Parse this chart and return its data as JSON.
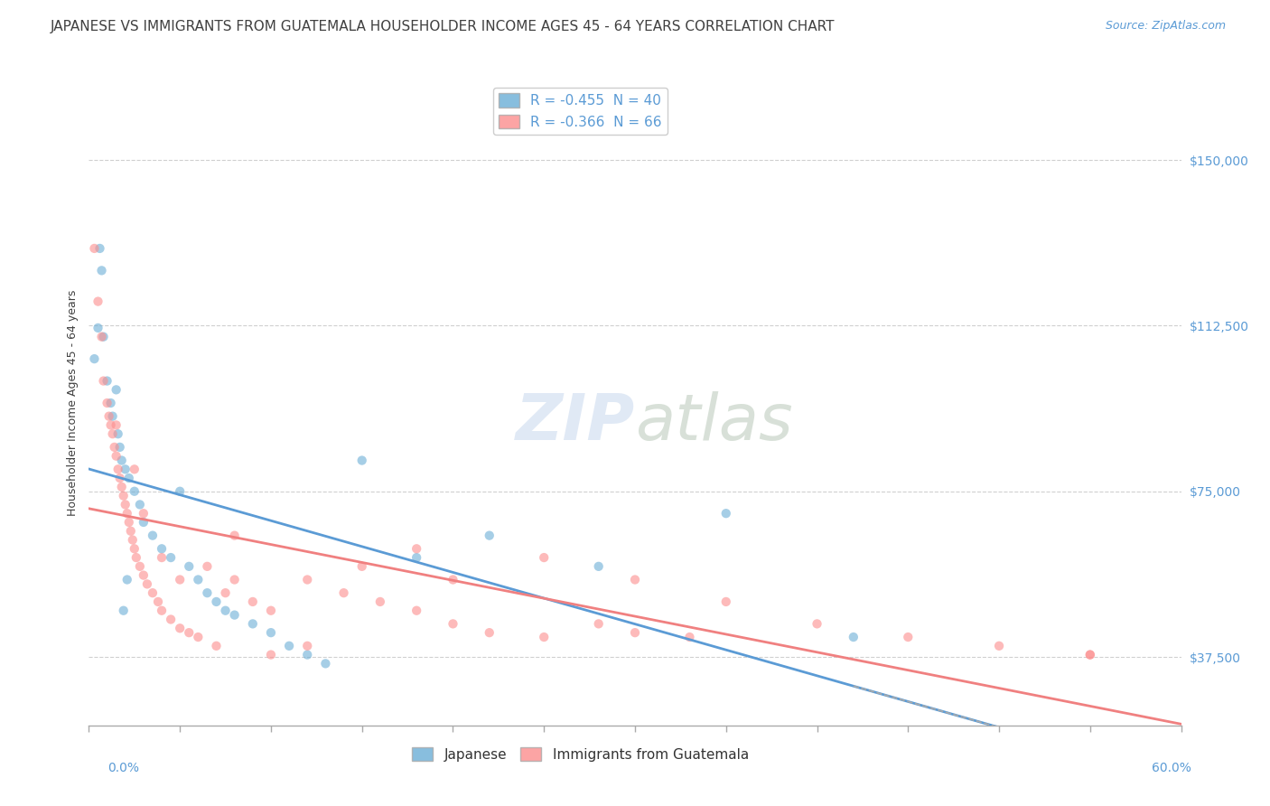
{
  "title": "JAPANESE VS IMMIGRANTS FROM GUATEMALA HOUSEHOLDER INCOME AGES 45 - 64 YEARS CORRELATION CHART",
  "source": "Source: ZipAtlas.com",
  "ylabel": "Householder Income Ages 45 - 64 years",
  "yticks": [
    37500,
    75000,
    112500,
    150000
  ],
  "ytick_labels": [
    "$37,500",
    "$75,000",
    "$112,500",
    "$150,000"
  ],
  "xlim": [
    0.0,
    60.0
  ],
  "ylim": [
    22000,
    168000
  ],
  "japanese_scatter": [
    [
      0.3,
      105000
    ],
    [
      0.5,
      112000
    ],
    [
      0.6,
      130000
    ],
    [
      0.7,
      125000
    ],
    [
      0.8,
      110000
    ],
    [
      1.0,
      100000
    ],
    [
      1.2,
      95000
    ],
    [
      1.3,
      92000
    ],
    [
      1.5,
      98000
    ],
    [
      1.6,
      88000
    ],
    [
      1.7,
      85000
    ],
    [
      1.8,
      82000
    ],
    [
      2.0,
      80000
    ],
    [
      2.2,
      78000
    ],
    [
      2.5,
      75000
    ],
    [
      2.8,
      72000
    ],
    [
      3.0,
      68000
    ],
    [
      3.5,
      65000
    ],
    [
      4.0,
      62000
    ],
    [
      4.5,
      60000
    ],
    [
      5.0,
      75000
    ],
    [
      5.5,
      58000
    ],
    [
      6.0,
      55000
    ],
    [
      6.5,
      52000
    ],
    [
      7.0,
      50000
    ],
    [
      7.5,
      48000
    ],
    [
      8.0,
      47000
    ],
    [
      9.0,
      45000
    ],
    [
      10.0,
      43000
    ],
    [
      11.0,
      40000
    ],
    [
      12.0,
      38000
    ],
    [
      13.0,
      36000
    ],
    [
      15.0,
      82000
    ],
    [
      18.0,
      60000
    ],
    [
      22.0,
      65000
    ],
    [
      28.0,
      58000
    ],
    [
      35.0,
      70000
    ],
    [
      42.0,
      42000
    ],
    [
      2.1,
      55000
    ],
    [
      1.9,
      48000
    ]
  ],
  "guatemala_scatter": [
    [
      0.3,
      130000
    ],
    [
      0.5,
      118000
    ],
    [
      0.7,
      110000
    ],
    [
      0.8,
      100000
    ],
    [
      1.0,
      95000
    ],
    [
      1.1,
      92000
    ],
    [
      1.2,
      90000
    ],
    [
      1.3,
      88000
    ],
    [
      1.4,
      85000
    ],
    [
      1.5,
      83000
    ],
    [
      1.6,
      80000
    ],
    [
      1.7,
      78000
    ],
    [
      1.8,
      76000
    ],
    [
      1.9,
      74000
    ],
    [
      2.0,
      72000
    ],
    [
      2.1,
      70000
    ],
    [
      2.2,
      68000
    ],
    [
      2.3,
      66000
    ],
    [
      2.4,
      64000
    ],
    [
      2.5,
      62000
    ],
    [
      2.6,
      60000
    ],
    [
      2.8,
      58000
    ],
    [
      3.0,
      56000
    ],
    [
      3.2,
      54000
    ],
    [
      3.5,
      52000
    ],
    [
      3.8,
      50000
    ],
    [
      4.0,
      48000
    ],
    [
      4.5,
      46000
    ],
    [
      5.0,
      44000
    ],
    [
      5.5,
      43000
    ],
    [
      6.0,
      42000
    ],
    [
      7.0,
      40000
    ],
    [
      8.0,
      55000
    ],
    [
      9.0,
      50000
    ],
    [
      10.0,
      48000
    ],
    [
      12.0,
      55000
    ],
    [
      14.0,
      52000
    ],
    [
      16.0,
      50000
    ],
    [
      18.0,
      48000
    ],
    [
      20.0,
      45000
    ],
    [
      22.0,
      43000
    ],
    [
      25.0,
      42000
    ],
    [
      28.0,
      45000
    ],
    [
      30.0,
      43000
    ],
    [
      33.0,
      42000
    ],
    [
      10.0,
      38000
    ],
    [
      12.0,
      40000
    ],
    [
      8.0,
      65000
    ],
    [
      15.0,
      58000
    ],
    [
      20.0,
      55000
    ],
    [
      6.5,
      58000
    ],
    [
      7.5,
      52000
    ],
    [
      3.0,
      70000
    ],
    [
      4.0,
      60000
    ],
    [
      5.0,
      55000
    ],
    [
      55.0,
      38000
    ],
    [
      2.5,
      80000
    ],
    [
      1.5,
      90000
    ],
    [
      18.0,
      62000
    ],
    [
      25.0,
      60000
    ],
    [
      30.0,
      55000
    ],
    [
      35.0,
      50000
    ],
    [
      40.0,
      45000
    ],
    [
      45.0,
      42000
    ],
    [
      50.0,
      40000
    ],
    [
      55.0,
      38000
    ]
  ],
  "blue_color": "#6baed6",
  "pink_color": "#fc8d8d",
  "blue_trend_color": "#5b9bd5",
  "pink_trend_color": "#f08080",
  "grid_color": "#d0d0d0",
  "background_color": "#ffffff",
  "title_color": "#404040",
  "axis_label_color": "#5b9bd5",
  "title_fontsize": 11,
  "axis_fontsize": 10
}
